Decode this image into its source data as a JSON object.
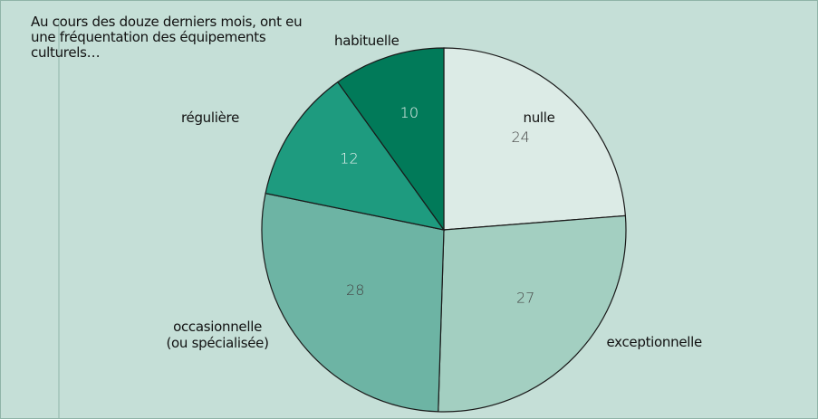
{
  "chart_data": {
    "type": "pie",
    "title": "Au cours des douze derniers mois, ont eu une fréquentation des équipements culturels…",
    "categories": [
      "nulle",
      "exceptionnelle",
      "occasionnelle\n(ou spécialisée)",
      "régulière",
      "habituelle"
    ],
    "values": [
      24,
      27,
      28,
      12,
      10
    ],
    "colors": [
      "#dcebe6",
      "#a3cfc1",
      "#6db4a4",
      "#1e9b7f",
      "#017a59"
    ]
  }
}
